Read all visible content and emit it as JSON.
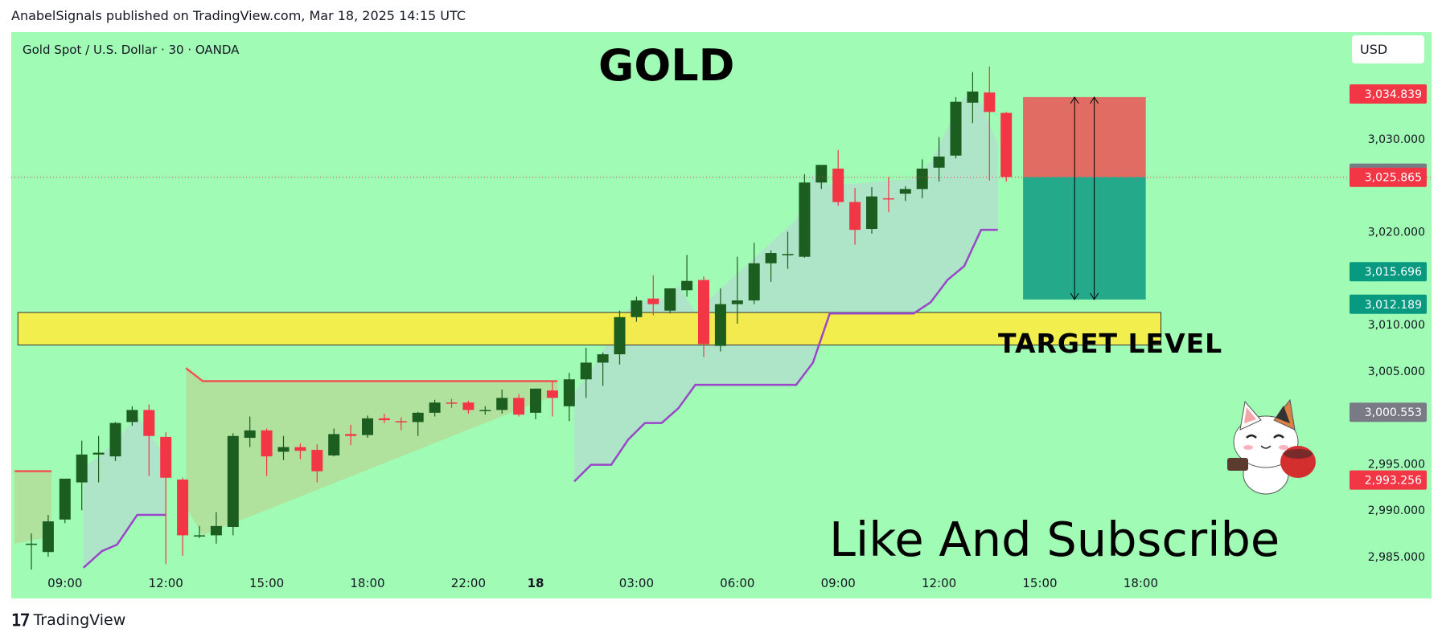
{
  "header": {
    "published_by": "AnabelSignals published on TradingView.com, Mar 18, 2025 14:15 UTC"
  },
  "footer": {
    "brand": "TradingView"
  },
  "chart_data": {
    "type": "candlestick",
    "symbol_label": "Gold Spot / U.S. Dollar · 30 · OANDA",
    "title": "GOLD",
    "currency": "USD",
    "annotations": {
      "target": "TARGET LEVEL",
      "cta": "Like And Subscribe"
    },
    "ylim": [
      2980.5,
      3041.5
    ],
    "y_ticks": [
      {
        "v": 3030,
        "label": "3,030.000"
      },
      {
        "v": 3020,
        "label": "3,020.000"
      },
      {
        "v": 3010,
        "label": "3,010.000"
      },
      {
        "v": 3005,
        "label": "3,005.000"
      },
      {
        "v": 2995,
        "label": "2,995.000"
      },
      {
        "v": 2990,
        "label": "2,990.000"
      },
      {
        "v": 2985,
        "label": "2,985.000"
      }
    ],
    "price_labels": [
      {
        "v": 3034.839,
        "label": "3,034.839",
        "color": "#f23645"
      },
      {
        "v": 3026.299,
        "label": "3,026.299",
        "color": "#787b86"
      },
      {
        "v": 3025.865,
        "label": "3,025.865",
        "color": "#f23645"
      },
      {
        "v": 3015.696,
        "label": "3,015.696",
        "color": "#089981"
      },
      {
        "v": 3012.189,
        "label": "3,012.189",
        "color": "#089981"
      },
      {
        "v": 3000.553,
        "label": "3,000.553",
        "color": "#787b86"
      },
      {
        "v": 2993.256,
        "label": "2,993.256",
        "color": "#f23645"
      }
    ],
    "x_ticks": [
      {
        "i": 2,
        "label": "09:00"
      },
      {
        "i": 8,
        "label": "12:00"
      },
      {
        "i": 14,
        "label": "15:00"
      },
      {
        "i": 20,
        "label": "18:00"
      },
      {
        "i": 26,
        "label": "22:00"
      },
      {
        "i": 30,
        "label": "18",
        "bold": true
      },
      {
        "i": 36,
        "label": "03:00"
      },
      {
        "i": 42,
        "label": "06:00"
      },
      {
        "i": 48,
        "label": "09:00"
      },
      {
        "i": 54,
        "label": "12:00"
      },
      {
        "i": 60,
        "label": "15:00"
      },
      {
        "i": 66,
        "label": "18:00"
      }
    ],
    "candles": [
      {
        "o": 2986.4,
        "h": 2987.5,
        "c": 2986.4,
        "l": 2983.6
      },
      {
        "o": 2985.5,
        "h": 2989.5,
        "c": 2988.8,
        "l": 2985.0
      },
      {
        "o": 2989.0,
        "h": 2993.0,
        "c": 2993.4,
        "l": 2988.6
      },
      {
        "o": 2993.0,
        "h": 2997.5,
        "c": 2996.0,
        "l": 2990.0
      },
      {
        "o": 2996.0,
        "h": 2998.0,
        "c": 2996.2,
        "l": 2993.0
      },
      {
        "o": 2995.8,
        "h": 2999.5,
        "c": 2999.4,
        "l": 2995.3
      },
      {
        "o": 2999.5,
        "h": 3001.2,
        "c": 3000.8,
        "l": 2999.1
      },
      {
        "o": 3000.8,
        "h": 3001.4,
        "c": 2998.0,
        "l": 2993.7
      },
      {
        "o": 2997.9,
        "h": 2998.4,
        "c": 2993.5,
        "l": 2984.2
      },
      {
        "o": 2993.3,
        "h": 2993.5,
        "c": 2987.3,
        "l": 2985.1
      },
      {
        "o": 2987.3,
        "h": 2988.3,
        "c": 2987.3,
        "l": 2987.0
      },
      {
        "o": 2987.3,
        "h": 2989.8,
        "c": 2988.3,
        "l": 2986.4
      },
      {
        "o": 2988.2,
        "h": 2998.3,
        "c": 2998.0,
        "l": 2987.3
      },
      {
        "o": 2997.8,
        "h": 3000.1,
        "c": 2998.6,
        "l": 2996.8
      },
      {
        "o": 2998.6,
        "h": 2998.8,
        "c": 2995.8,
        "l": 2993.7
      },
      {
        "o": 2996.3,
        "h": 2998.0,
        "c": 2996.8,
        "l": 2995.4
      },
      {
        "o": 2996.8,
        "h": 2997.2,
        "c": 2996.4,
        "l": 2995.5
      },
      {
        "o": 2996.5,
        "h": 2997.1,
        "c": 2994.2,
        "l": 2993.0
      },
      {
        "o": 2995.9,
        "h": 2998.8,
        "c": 2998.2,
        "l": 2995.8
      },
      {
        "o": 2998.2,
        "h": 2999.2,
        "c": 2998.0,
        "l": 2997.0
      },
      {
        "o": 2998.1,
        "h": 3000.2,
        "c": 2999.9,
        "l": 2997.8
      },
      {
        "o": 2999.9,
        "h": 3000.4,
        "c": 2999.7,
        "l": 2999.4
      },
      {
        "o": 2999.6,
        "h": 3000.0,
        "c": 2999.5,
        "l": 2998.6
      },
      {
        "o": 2999.5,
        "h": 3000.6,
        "c": 3000.5,
        "l": 2998.0
      },
      {
        "o": 3000.5,
        "h": 3001.9,
        "c": 3001.6,
        "l": 3000.1
      },
      {
        "o": 3001.6,
        "h": 3002.0,
        "c": 3001.5,
        "l": 3001.0
      },
      {
        "o": 3001.6,
        "h": 3001.8,
        "c": 3000.8,
        "l": 3000.4
      },
      {
        "o": 3000.8,
        "h": 3001.2,
        "c": 3000.8,
        "l": 3000.3
      },
      {
        "o": 3000.8,
        "h": 3003.0,
        "c": 3002.1,
        "l": 3000.4
      },
      {
        "o": 3002.1,
        "h": 3002.5,
        "c": 3000.3,
        "l": 3000.1
      },
      {
        "o": 3000.5,
        "h": 3003.1,
        "c": 3003.1,
        "l": 2999.8
      },
      {
        "o": 3002.9,
        "h": 3003.9,
        "c": 3002.1,
        "l": 3000.1
      },
      {
        "o": 3001.2,
        "h": 3004.8,
        "c": 3004.1,
        "l": 2999.6
      },
      {
        "o": 3004.1,
        "h": 3007.5,
        "c": 3005.9,
        "l": 3002.1
      },
      {
        "o": 3005.9,
        "h": 3007.0,
        "c": 3006.8,
        "l": 3003.4
      },
      {
        "o": 3006.8,
        "h": 3011.5,
        "c": 3010.8,
        "l": 3005.7
      },
      {
        "o": 3010.8,
        "h": 3013.0,
        "c": 3012.6,
        "l": 3010.3
      },
      {
        "o": 3012.8,
        "h": 3015.3,
        "c": 3012.2,
        "l": 3011.0
      },
      {
        "o": 3011.5,
        "h": 3013.5,
        "c": 3013.9,
        "l": 3011.2
      },
      {
        "o": 3013.7,
        "h": 3017.5,
        "c": 3014.7,
        "l": 3013.0
      },
      {
        "o": 3014.8,
        "h": 3015.2,
        "c": 3007.9,
        "l": 3006.5
      },
      {
        "o": 3007.7,
        "h": 3013.9,
        "c": 3012.2,
        "l": 3007.1
      },
      {
        "o": 3012.2,
        "h": 3017.3,
        "c": 3012.6,
        "l": 3010.1
      },
      {
        "o": 3012.6,
        "h": 3018.8,
        "c": 3016.6,
        "l": 3012.2
      },
      {
        "o": 3016.6,
        "h": 3018.0,
        "c": 3017.7,
        "l": 3014.6
      },
      {
        "o": 3017.6,
        "h": 3020.0,
        "c": 3017.6,
        "l": 3016.0
      },
      {
        "o": 3017.3,
        "h": 3026.2,
        "c": 3025.3,
        "l": 3017.2
      },
      {
        "o": 3025.3,
        "h": 3026.8,
        "c": 3027.2,
        "l": 3024.6
      },
      {
        "o": 3026.8,
        "h": 3028.8,
        "c": 3023.2,
        "l": 3022.8
      },
      {
        "o": 3023.2,
        "h": 3024.7,
        "c": 3020.2,
        "l": 3018.6
      },
      {
        "o": 3020.3,
        "h": 3024.8,
        "c": 3023.8,
        "l": 3019.8
      },
      {
        "o": 3023.6,
        "h": 3025.9,
        "c": 3023.5,
        "l": 3022.1
      },
      {
        "o": 3024.1,
        "h": 3024.9,
        "c": 3024.6,
        "l": 3023.3
      },
      {
        "o": 3024.6,
        "h": 3027.8,
        "c": 3026.8,
        "l": 3023.6
      },
      {
        "o": 3026.9,
        "h": 3030.2,
        "c": 3028.1,
        "l": 3025.4
      },
      {
        "o": 3028.2,
        "h": 3034.5,
        "c": 3034.0,
        "l": 3027.9
      },
      {
        "o": 3033.9,
        "h": 3037.2,
        "c": 3035.1,
        "l": 3031.7
      },
      {
        "o": 3035.0,
        "h": 3037.8,
        "c": 3032.9,
        "l": 3025.5
      },
      {
        "o": 3032.8,
        "h": 3032.9,
        "c": 3025.9,
        "l": 3025.4
      }
    ],
    "target_zone": {
      "y_top": 3011.3,
      "y_bottom": 3007.8,
      "i_from": -0.8,
      "i_to": 67.2,
      "color": "#ffeb3b"
    },
    "position": {
      "entry": 3025.9,
      "stop": 3034.5,
      "target": 3012.7,
      "i_from": 59,
      "i_to": 66.3,
      "stop_color": "#e85c5a",
      "target_color": "#1ea589"
    },
    "indicator_color": "#9a46c8",
    "red_line_color": "#f05350",
    "indicator_segments": [
      {
        "pts": [
          [
            -1,
            2994.2
          ],
          [
            1.2,
            2994.2
          ]
        ],
        "color": "#f05350",
        "fill": true
      },
      {
        "pts": [
          [
            3.1,
            2983.8
          ],
          [
            4.2,
            2985.6
          ],
          [
            5.1,
            2986.3
          ],
          [
            6.3,
            2989.5
          ],
          [
            8.0,
            2989.5
          ]
        ],
        "color": "#9a46c8",
        "fill": true
      },
      {
        "pts": [
          [
            9.2,
            3005.3
          ],
          [
            10.2,
            3003.9
          ],
          [
            31.3,
            3003.9
          ]
        ],
        "color": "#f05350",
        "fill": true
      },
      {
        "pts": [
          [
            32.3,
            2993.1
          ],
          [
            33.3,
            2994.9
          ],
          [
            34.5,
            2994.9
          ],
          [
            35.5,
            2997.6
          ],
          [
            36.5,
            2999.4
          ],
          [
            37.5,
            2999.4
          ],
          [
            38.5,
            3001.0
          ],
          [
            39.5,
            3003.5
          ],
          [
            45.5,
            3003.5
          ],
          [
            46.5,
            3005.9
          ],
          [
            47.5,
            3011.2
          ],
          [
            52.5,
            3011.2
          ],
          [
            53.5,
            3012.4
          ],
          [
            54.5,
            3014.8
          ],
          [
            55.5,
            3016.3
          ],
          [
            56.5,
            3020.2
          ],
          [
            57.5,
            3020.2
          ]
        ],
        "color": "#9a46c8",
        "fill": true
      }
    ]
  }
}
